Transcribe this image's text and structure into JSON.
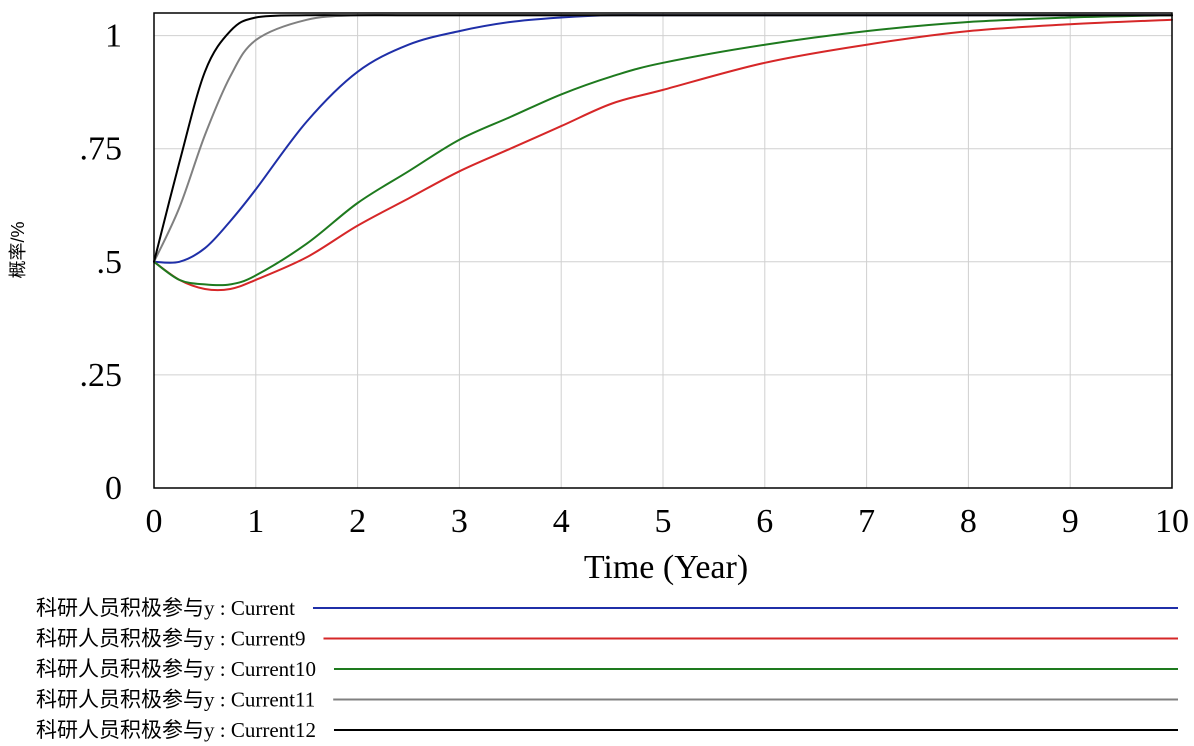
{
  "chart_data": {
    "type": "line",
    "title": "",
    "xlabel": "Time (Year)",
    "ylabel": "概率/%",
    "xlim": [
      0,
      10
    ],
    "ylim": [
      0,
      1.05
    ],
    "grid": true,
    "legend_position": "bottom",
    "x_ticks": [
      "0",
      "1",
      "2",
      "3",
      "4",
      "5",
      "6",
      "7",
      "8",
      "9",
      "10"
    ],
    "y_ticks": [
      {
        "value": 0,
        "label": "0"
      },
      {
        "value": 0.25,
        "label": ".25"
      },
      {
        "value": 0.5,
        "label": ".5"
      },
      {
        "value": 0.75,
        "label": ".75"
      },
      {
        "value": 1,
        "label": "1"
      }
    ],
    "x": [
      0,
      0.25,
      0.5,
      0.75,
      1,
      1.5,
      2,
      2.5,
      3,
      3.5,
      4,
      4.5,
      5,
      6,
      7,
      8,
      9,
      10
    ],
    "series": [
      {
        "name": "科研人员积极参与y : Current",
        "color": "#1f2fa8",
        "values": [
          0.5,
          0.5,
          0.53,
          0.59,
          0.66,
          0.81,
          0.92,
          0.98,
          1.01,
          1.03,
          1.04,
          1.045,
          1.045,
          1.045,
          1.045,
          1.045,
          1.045,
          1.045
        ]
      },
      {
        "name": "科研人员积极参与y : Current9",
        "color": "#d62728",
        "values": [
          0.5,
          0.46,
          0.44,
          0.44,
          0.46,
          0.51,
          0.58,
          0.64,
          0.7,
          0.75,
          0.8,
          0.85,
          0.88,
          0.94,
          0.98,
          1.01,
          1.025,
          1.035
        ]
      },
      {
        "name": "科研人员积极参与y : Current10",
        "color": "#1e7a1e",
        "values": [
          0.5,
          0.46,
          0.45,
          0.45,
          0.47,
          0.54,
          0.63,
          0.7,
          0.77,
          0.82,
          0.87,
          0.91,
          0.94,
          0.98,
          1.01,
          1.03,
          1.04,
          1.045
        ]
      },
      {
        "name": "科研人员积极参与y : Current11",
        "color": "#808080",
        "values": [
          0.5,
          0.62,
          0.78,
          0.91,
          0.99,
          1.035,
          1.045,
          1.045,
          1.045,
          1.045,
          1.045,
          1.045,
          1.045,
          1.045,
          1.045,
          1.045,
          1.045,
          1.045
        ]
      },
      {
        "name": "科研人员积极参与y : Current12",
        "color": "#000000",
        "values": [
          0.5,
          0.72,
          0.92,
          1.01,
          1.04,
          1.045,
          1.045,
          1.045,
          1.045,
          1.045,
          1.045,
          1.045,
          1.045,
          1.045,
          1.045,
          1.045,
          1.045,
          1.045
        ]
      }
    ]
  }
}
